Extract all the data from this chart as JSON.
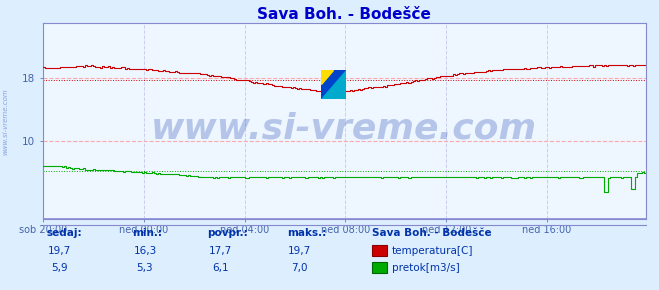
{
  "title": "Sava Boh. - Bodešče",
  "title_color": "#0000cd",
  "bg_color": "#ddeeff",
  "plot_bg_color": "#eef6ff",
  "grid_color_h": "#ffaaaa",
  "grid_color_v": "#ccccee",
  "axis_color": "#8888cc",
  "tick_color": "#4466aa",
  "ylim": [
    0,
    25
  ],
  "yticks": [
    10,
    18
  ],
  "xtick_positions": [
    0,
    48,
    96,
    144,
    192,
    240
  ],
  "xtick_labels": [
    "sob 20:00",
    "ned 00:00",
    "ned 04:00",
    "ned 08:00",
    "ned 12:00",
    "ned 16:00"
  ],
  "n_points": 288,
  "watermark": "www.si-vreme.com",
  "watermark_color": "#3355bb",
  "watermark_alpha": 0.3,
  "watermark_fontsize": 26,
  "side_label": "www.si-vreme.com",
  "side_label_color": "#3355bb",
  "side_label_alpha": 0.5,
  "temp_color": "#cc0000",
  "flow_color": "#00aa00",
  "blue_base_color": "#8888dd",
  "temp_avg_color": "#cc0000",
  "flow_avg_color": "#00aa00",
  "temp_avg_value": 17.7,
  "flow_avg_value": 6.1,
  "footer_text_color": "#0033aa",
  "footer_bold_color": "#0033aa",
  "sedaj_label": "sedaj:",
  "min_label": "min.:",
  "povpr_label": "povpr.:",
  "maks_label": "maks.:",
  "station_label": "Sava Boh. - Bodešče",
  "temp_label": "temperatura[C]",
  "flow_label": "pretok[m3/s]",
  "temp_sedaj": "19,7",
  "temp_min": "16,3",
  "temp_povpr": "17,7",
  "temp_maks": "19,7",
  "flow_sedaj": "5,9",
  "flow_min": "5,3",
  "flow_povpr": "6,1",
  "flow_maks": "7,0",
  "logo_colors": [
    "#ffdd00",
    "#00aacc",
    "#0044cc"
  ]
}
